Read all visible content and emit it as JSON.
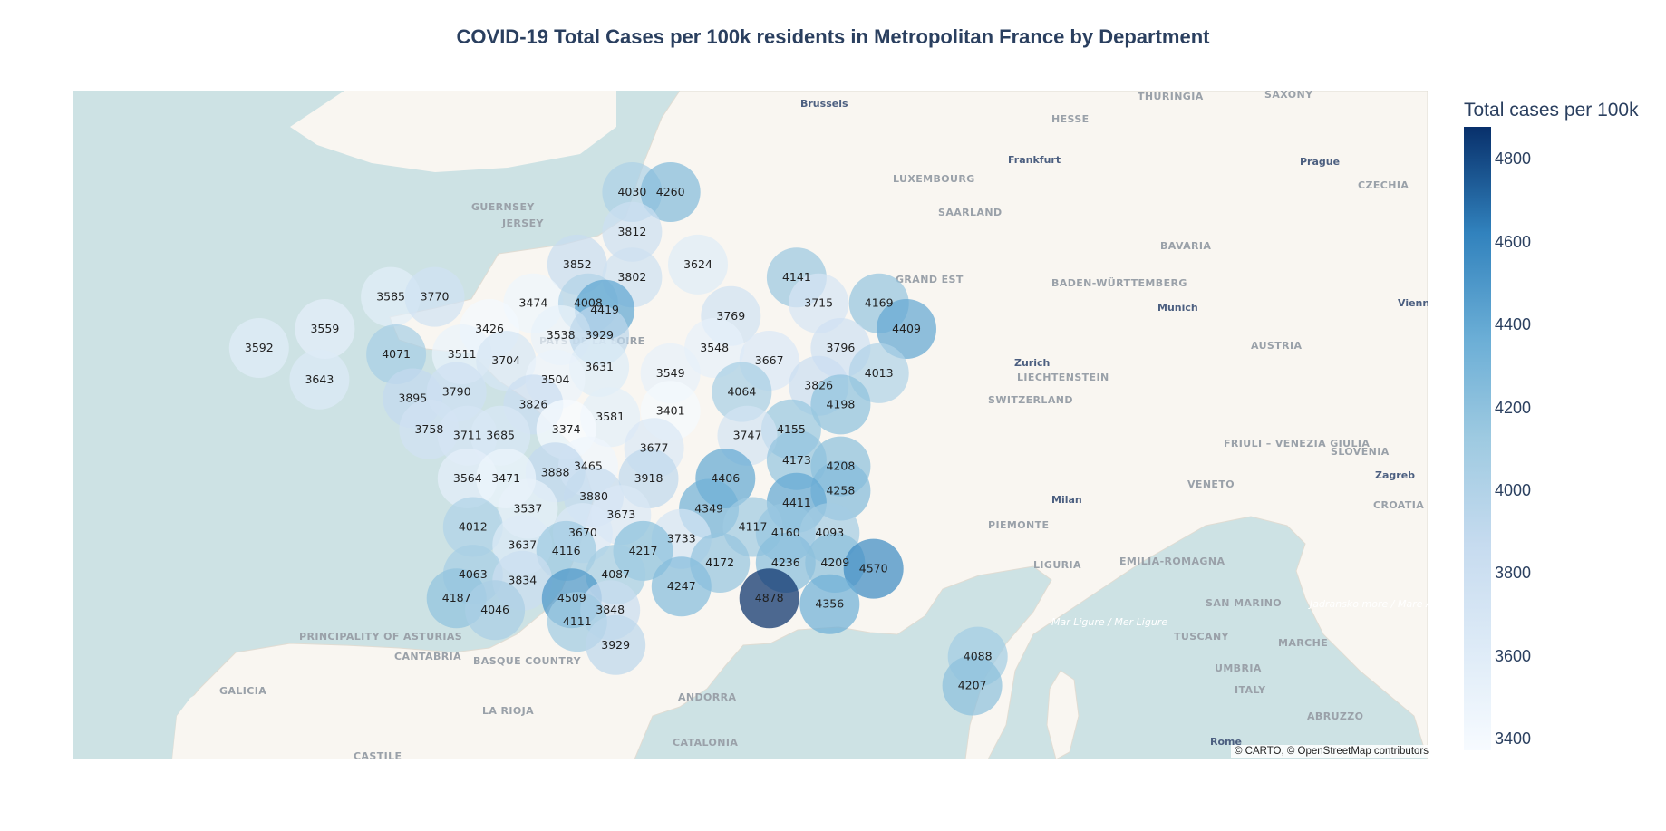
{
  "title": "COVID-19 Total Cases per 100k residents in Metropolitan France by Department",
  "colorbar": {
    "title": "Total cases per 100k",
    "ticks": [
      "4800",
      "4600",
      "4400",
      "4200",
      "4000",
      "3800",
      "3600",
      "3400"
    ],
    "range": [
      3374,
      4878
    ],
    "colorscale": [
      "#f7fbff",
      "#deebf7",
      "#c6dbef",
      "#9ecae1",
      "#6baed6",
      "#3182bd",
      "#08306b"
    ]
  },
  "attribution": "© CARTO, © OpenStreetMap contributors",
  "map_labels": {
    "places": [
      "THURINGIA",
      "SAXONY",
      "HESSE",
      "CZECHIA",
      "LUXEMBOURG",
      "SAARLAND",
      "BAVARIA",
      "BADEN-WÜRTTEMBERG",
      "GUERNSEY",
      "JERSEY",
      "GRAND EST",
      "PAYS DE LA LOIRE",
      "LIECHTENSTEIN",
      "AUSTRIA",
      "SWITZERLAND",
      "FRIULI – VENEZIA GIULIA",
      "SLOVENIA",
      "CROATIA",
      "VENETO",
      "PIEMONTE",
      "LIGURIA",
      "EMILIA-ROMAGNA",
      "SAN MARINO",
      "MARCHE",
      "TUSCANY",
      "UMBRIA",
      "ITALY",
      "ABRUZZO",
      "PRINCIPALITY OF ASTURIAS",
      "CANTABRIA",
      "BASQUE COUNTRY",
      "GALICIA",
      "LA RIOJA",
      "ANDORRA",
      "CATALONIA",
      "CASTILE"
    ],
    "cities": [
      "Brussels",
      "Frankfurt",
      "Prague",
      "Munich",
      "Vienna",
      "Zurich",
      "Zagreb",
      "Milan",
      "Rome"
    ],
    "seas": [
      "Mar Ligure / Mer Ligure",
      "Jadransko more / Mare Adriatico / Deti Adriatik"
    ]
  },
  "chart_data": {
    "type": "scatter_mapbox",
    "value_label": "Total cases per 100k",
    "points": [
      {
        "lon": 2.8,
        "lat": 50.5,
        "value": 4030
      },
      {
        "lon": 3.5,
        "lat": 50.5,
        "value": 4260
      },
      {
        "lon": 2.8,
        "lat": 49.9,
        "value": 3812
      },
      {
        "lon": 1.8,
        "lat": 49.4,
        "value": 3852
      },
      {
        "lon": 2.8,
        "lat": 49.2,
        "value": 3802
      },
      {
        "lon": 4.0,
        "lat": 49.4,
        "value": 3624
      },
      {
        "lon": 5.8,
        "lat": 49.2,
        "value": 4141
      },
      {
        "lon": -1.6,
        "lat": 48.9,
        "value": 3585
      },
      {
        "lon": -0.8,
        "lat": 48.9,
        "value": 3770
      },
      {
        "lon": 1.0,
        "lat": 48.8,
        "value": 3474
      },
      {
        "lon": 2.0,
        "lat": 48.8,
        "value": 4008
      },
      {
        "lon": 2.3,
        "lat": 48.7,
        "value": 4419
      },
      {
        "lon": 4.6,
        "lat": 48.6,
        "value": 3769
      },
      {
        "lon": 6.2,
        "lat": 48.8,
        "value": 3715
      },
      {
        "lon": 7.3,
        "lat": 48.8,
        "value": 4169
      },
      {
        "lon": 7.8,
        "lat": 48.4,
        "value": 4409
      },
      {
        "lon": 0.2,
        "lat": 48.4,
        "value": 3426
      },
      {
        "lon": -2.8,
        "lat": 48.4,
        "value": 3559
      },
      {
        "lon": 1.5,
        "lat": 48.3,
        "value": 3538
      },
      {
        "lon": 2.2,
        "lat": 48.3,
        "value": 3929
      },
      {
        "lon": 4.3,
        "lat": 48.1,
        "value": 3548
      },
      {
        "lon": 6.6,
        "lat": 48.1,
        "value": 3796
      },
      {
        "lon": -4.0,
        "lat": 48.1,
        "value": 3592
      },
      {
        "lon": -1.5,
        "lat": 48.0,
        "value": 4071
      },
      {
        "lon": -0.3,
        "lat": 48.0,
        "value": 3511
      },
      {
        "lon": 0.5,
        "lat": 47.9,
        "value": 3704
      },
      {
        "lon": 5.3,
        "lat": 47.9,
        "value": 3667
      },
      {
        "lon": 2.2,
        "lat": 47.8,
        "value": 3631
      },
      {
        "lon": 3.5,
        "lat": 47.7,
        "value": 3549
      },
      {
        "lon": 7.3,
        "lat": 47.7,
        "value": 4013
      },
      {
        "lon": -2.9,
        "lat": 47.6,
        "value": 3643
      },
      {
        "lon": 1.4,
        "lat": 47.6,
        "value": 3504
      },
      {
        "lon": 6.2,
        "lat": 47.5,
        "value": 3826
      },
      {
        "lon": 4.8,
        "lat": 47.4,
        "value": 4064
      },
      {
        "lon": -1.2,
        "lat": 47.3,
        "value": 3895
      },
      {
        "lon": -0.4,
        "lat": 47.4,
        "value": 3790
      },
      {
        "lon": 1.0,
        "lat": 47.2,
        "value": 3826
      },
      {
        "lon": 6.6,
        "lat": 47.2,
        "value": 4198
      },
      {
        "lon": 3.5,
        "lat": 47.1,
        "value": 3401
      },
      {
        "lon": 2.4,
        "lat": 47.0,
        "value": 3581
      },
      {
        "lon": 5.7,
        "lat": 46.8,
        "value": 4155
      },
      {
        "lon": 1.6,
        "lat": 46.8,
        "value": 3374
      },
      {
        "lon": -0.9,
        "lat": 46.8,
        "value": 3758
      },
      {
        "lon": -0.2,
        "lat": 46.7,
        "value": 3711
      },
      {
        "lon": 0.4,
        "lat": 46.7,
        "value": 3685
      },
      {
        "lon": 4.9,
        "lat": 46.7,
        "value": 3747
      },
      {
        "lon": 3.2,
        "lat": 46.5,
        "value": 3677
      },
      {
        "lon": 5.8,
        "lat": 46.3,
        "value": 4173
      },
      {
        "lon": 6.6,
        "lat": 46.2,
        "value": 4208
      },
      {
        "lon": 2.0,
        "lat": 46.2,
        "value": 3465
      },
      {
        "lon": 1.4,
        "lat": 46.1,
        "value": 3888
      },
      {
        "lon": 3.1,
        "lat": 46.0,
        "value": 3918
      },
      {
        "lon": 4.5,
        "lat": 46.0,
        "value": 4406
      },
      {
        "lon": -0.2,
        "lat": 46.0,
        "value": 3564
      },
      {
        "lon": 0.5,
        "lat": 46.0,
        "value": 3471
      },
      {
        "lon": 6.6,
        "lat": 45.8,
        "value": 4258
      },
      {
        "lon": 2.1,
        "lat": 45.7,
        "value": 3880
      },
      {
        "lon": 5.8,
        "lat": 45.6,
        "value": 4411
      },
      {
        "lon": 4.2,
        "lat": 45.5,
        "value": 4349
      },
      {
        "lon": 0.9,
        "lat": 45.5,
        "value": 3537
      },
      {
        "lon": 2.6,
        "lat": 45.4,
        "value": 3673
      },
      {
        "lon": 5.0,
        "lat": 45.2,
        "value": 4117
      },
      {
        "lon": -0.1,
        "lat": 45.2,
        "value": 4012
      },
      {
        "lon": 5.6,
        "lat": 45.1,
        "value": 4160
      },
      {
        "lon": 6.4,
        "lat": 45.1,
        "value": 4093
      },
      {
        "lon": 1.9,
        "lat": 45.1,
        "value": 3670
      },
      {
        "lon": 3.7,
        "lat": 45.0,
        "value": 3733
      },
      {
        "lon": 0.8,
        "lat": 44.9,
        "value": 3637
      },
      {
        "lon": 3.0,
        "lat": 44.8,
        "value": 4217
      },
      {
        "lon": 1.6,
        "lat": 44.8,
        "value": 4116
      },
      {
        "lon": 4.4,
        "lat": 44.6,
        "value": 4172
      },
      {
        "lon": 5.6,
        "lat": 44.6,
        "value": 4236
      },
      {
        "lon": 6.5,
        "lat": 44.6,
        "value": 4209
      },
      {
        "lon": 7.2,
        "lat": 44.5,
        "value": 4570
      },
      {
        "lon": -0.1,
        "lat": 44.4,
        "value": 4063
      },
      {
        "lon": 2.5,
        "lat": 44.4,
        "value": 4087
      },
      {
        "lon": 0.8,
        "lat": 44.3,
        "value": 3834
      },
      {
        "lon": 3.7,
        "lat": 44.2,
        "value": 4247
      },
      {
        "lon": 5.3,
        "lat": 44.0,
        "value": 4878
      },
      {
        "lon": 6.4,
        "lat": 43.9,
        "value": 4356
      },
      {
        "lon": -0.4,
        "lat": 44.0,
        "value": 4187
      },
      {
        "lon": 1.7,
        "lat": 44.0,
        "value": 4509
      },
      {
        "lon": 0.3,
        "lat": 43.8,
        "value": 4046
      },
      {
        "lon": 2.4,
        "lat": 43.8,
        "value": 3848
      },
      {
        "lon": 1.8,
        "lat": 43.6,
        "value": 4111
      },
      {
        "lon": 2.5,
        "lat": 43.2,
        "value": 3929
      },
      {
        "lon": 9.1,
        "lat": 43.0,
        "value": 4088
      },
      {
        "lon": 9.0,
        "lat": 42.5,
        "value": 4207
      }
    ]
  }
}
